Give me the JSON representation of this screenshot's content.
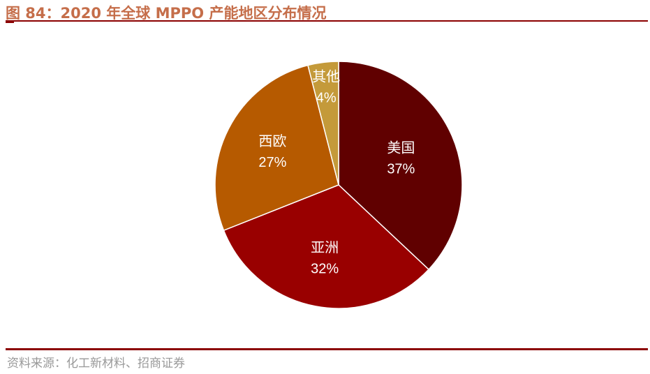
{
  "title": "图 84：2020 年全球 MPPO 产能地区分布情况",
  "source": "资料来源：化工新材料、招商证券",
  "chart_data": {
    "type": "pie",
    "title": "",
    "start": "top",
    "direction": "clockwise",
    "slices": [
      {
        "label": "美国",
        "value": 37,
        "display": "37%",
        "color": "#600000"
      },
      {
        "label": "亚洲",
        "value": 32,
        "display": "32%",
        "color": "#990000"
      },
      {
        "label": "西欧",
        "value": 27,
        "display": "27%",
        "color": "#B65A00"
      },
      {
        "label": "其他",
        "value": 4,
        "display": "4%",
        "color": "#C49A3A"
      }
    ]
  }
}
